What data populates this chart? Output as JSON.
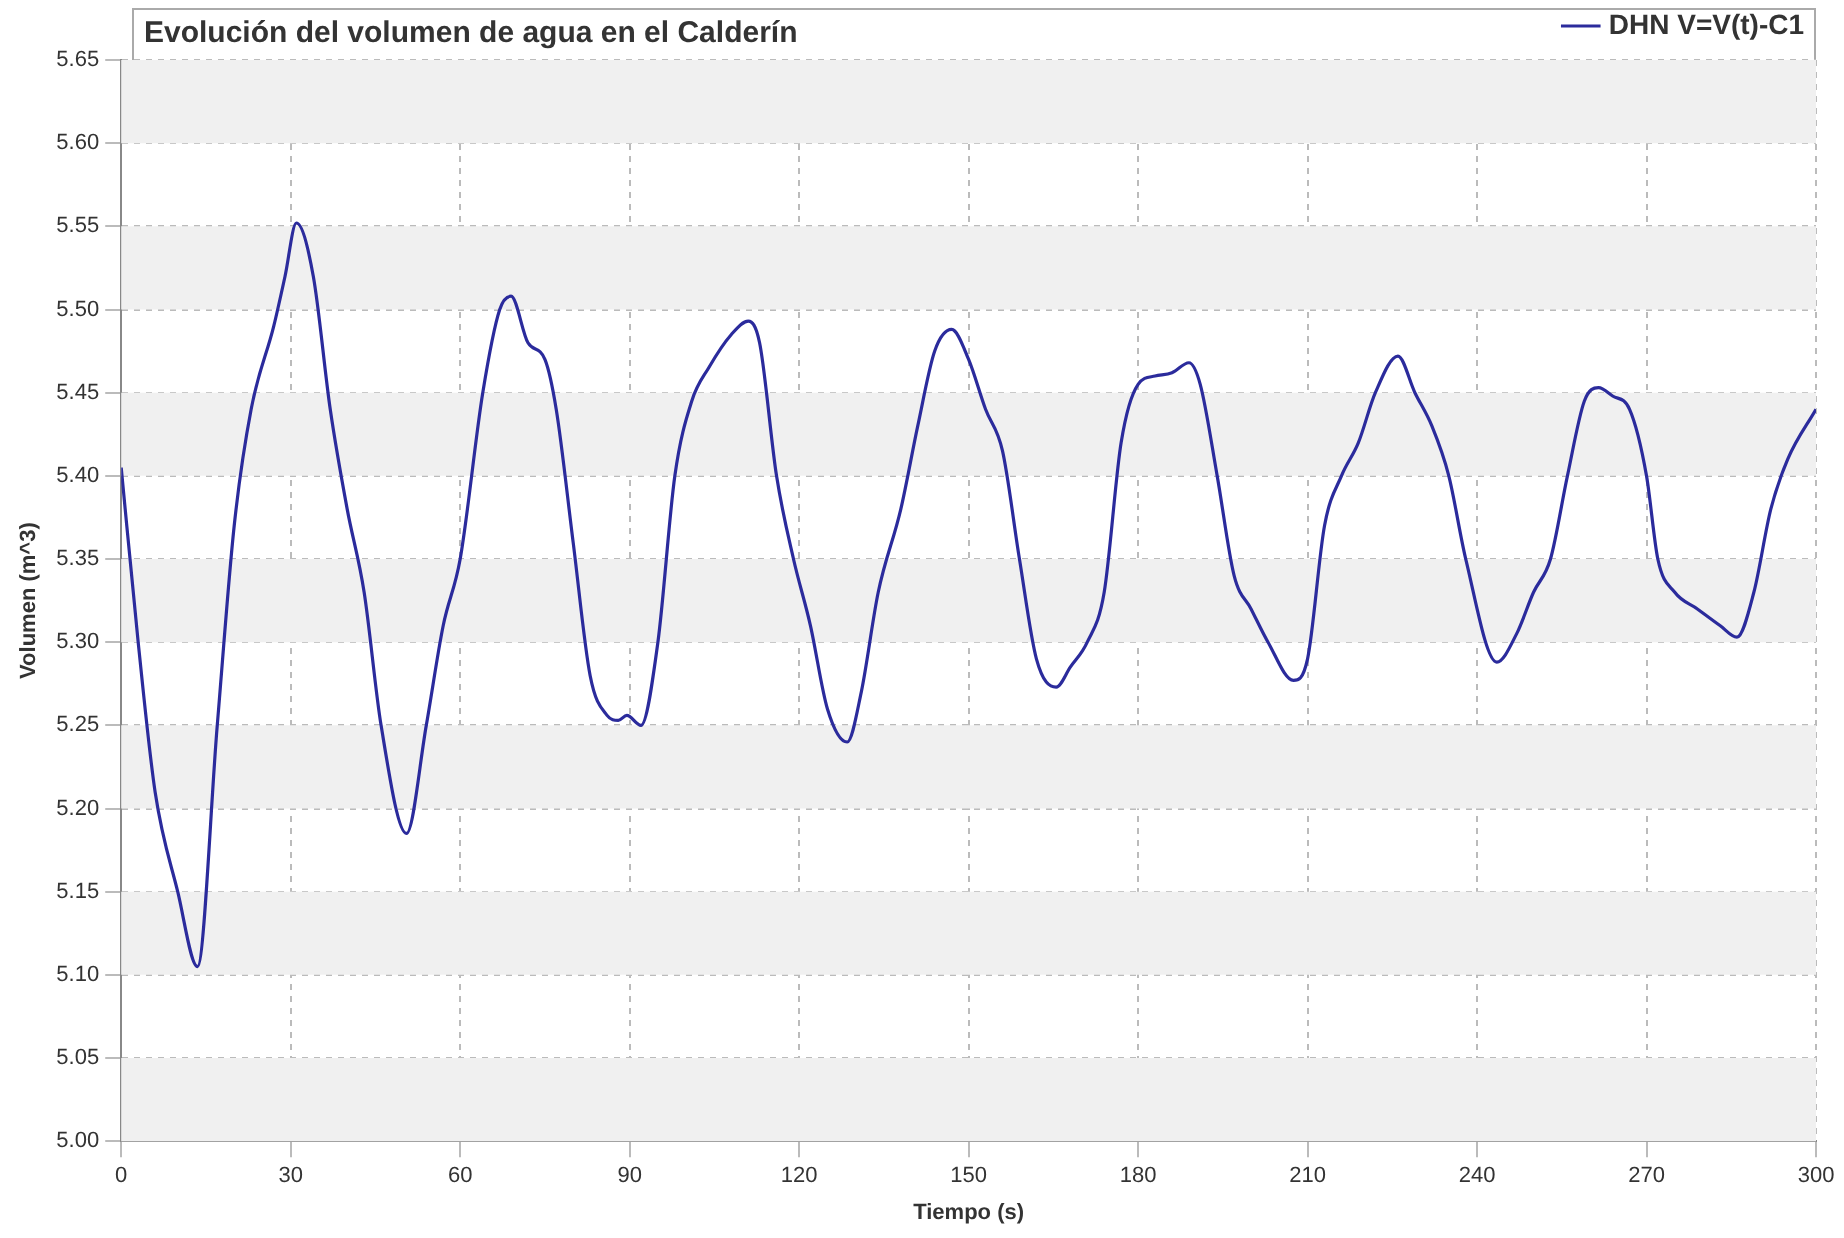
{
  "chart_data": {
    "type": "line",
    "title": "Evolución del volumen de agua en el Calderín",
    "xlabel": "Tiempo (s)",
    "ylabel": "Volumen (m^3)",
    "xlim": [
      0,
      300
    ],
    "xticks": [
      0,
      30,
      60,
      90,
      120,
      150,
      180,
      210,
      240,
      270,
      300
    ],
    "ylim": [
      5.0,
      5.65
    ],
    "yticks": [
      {
        "value": 5.0,
        "label": "5.00"
      },
      {
        "value": 5.05,
        "label": "5.05"
      },
      {
        "value": 5.1,
        "label": "5.10"
      },
      {
        "value": 5.15,
        "label": "5.15"
      },
      {
        "value": 5.2,
        "label": "5.20"
      },
      {
        "value": 5.25,
        "label": "5.25"
      },
      {
        "value": 5.3,
        "label": "5.30"
      },
      {
        "value": 5.35,
        "label": "5.35"
      },
      {
        "value": 5.4,
        "label": "5.40"
      },
      {
        "value": 5.45,
        "label": "5.45"
      },
      {
        "value": 5.5,
        "label": "5.50"
      },
      {
        "value": 5.55,
        "label": "5.55"
      },
      {
        "value": 5.6,
        "label": "5.60"
      },
      {
        "value": 5.65,
        "label": "5.65"
      }
    ],
    "grid": true,
    "legend": "top right",
    "marker": "none",
    "line_style": "solid",
    "series": [
      {
        "name": "DHN V=V(t)-C1",
        "color": "#2b2b9c",
        "x": [
          0,
          3,
          6,
          10,
          13.5,
          17,
          20,
          23,
          27,
          29,
          31,
          34,
          37,
          40,
          43,
          46,
          50.5,
          54,
          57,
          60,
          64,
          67,
          69,
          72,
          75,
          77,
          80,
          83,
          86,
          88,
          89.5,
          92,
          95,
          98,
          101,
          104,
          108,
          111,
          113,
          116,
          119,
          122,
          125,
          128.5,
          131,
          134,
          138,
          141,
          144,
          147,
          150,
          153,
          156,
          159,
          162,
          165.5,
          168,
          171,
          174,
          177,
          180,
          183,
          186,
          189,
          191,
          194,
          197,
          200,
          203,
          207.5,
          210,
          213,
          216,
          219,
          222,
          226,
          229,
          232,
          235,
          238,
          243.5,
          247,
          250,
          253,
          256,
          259,
          261.5,
          264,
          267,
          270,
          272,
          275,
          279,
          283,
          286,
          289,
          292,
          295,
          300
        ],
        "values": [
          5.405,
          5.3,
          5.21,
          5.15,
          5.105,
          5.25,
          5.37,
          5.44,
          5.49,
          5.52,
          5.552,
          5.52,
          5.44,
          5.38,
          5.33,
          5.25,
          5.185,
          5.25,
          5.31,
          5.35,
          5.45,
          5.5,
          5.508,
          5.48,
          5.47,
          5.44,
          5.36,
          5.28,
          5.256,
          5.253,
          5.256,
          5.25,
          5.3,
          5.4,
          5.445,
          5.465,
          5.485,
          5.493,
          5.48,
          5.4,
          5.35,
          5.31,
          5.26,
          5.24,
          5.27,
          5.33,
          5.38,
          5.43,
          5.475,
          5.488,
          5.47,
          5.44,
          5.415,
          5.35,
          5.29,
          5.273,
          5.285,
          5.3,
          5.33,
          5.42,
          5.455,
          5.46,
          5.462,
          5.468,
          5.455,
          5.4,
          5.34,
          5.32,
          5.3,
          5.277,
          5.29,
          5.37,
          5.4,
          5.42,
          5.45,
          5.472,
          5.45,
          5.43,
          5.4,
          5.35,
          5.288,
          5.305,
          5.33,
          5.35,
          5.4,
          5.445,
          5.453,
          5.448,
          5.44,
          5.4,
          5.35,
          5.33,
          5.32,
          5.31,
          5.303,
          5.33,
          5.38,
          5.41,
          5.44
        ]
      }
    ]
  }
}
